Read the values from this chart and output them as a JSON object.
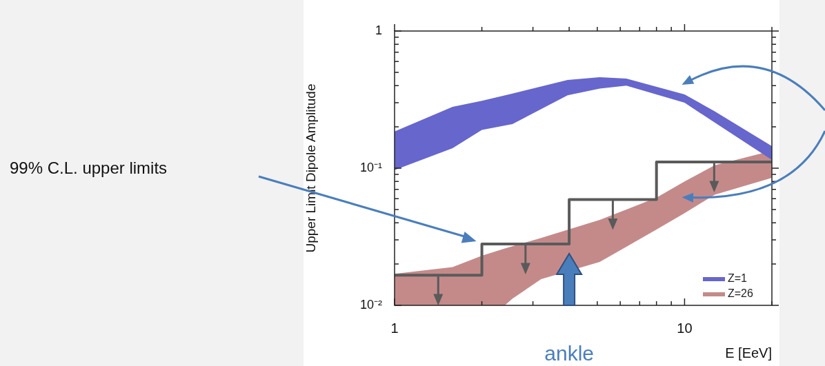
{
  "chart_data": {
    "type": "line",
    "xlabel": "E [EeV]",
    "ylabel": "Upper Limit Dipole Amplitude",
    "log": "xy",
    "legend": "bottom right",
    "xlim": [
      1,
      20
    ],
    "xticks": [
      1,
      {
        "value": 2,
        "label": null
      },
      {
        "value": 3,
        "label": null
      },
      {
        "value": 4,
        "label": null
      },
      {
        "value": 5,
        "label": null
      },
      {
        "value": 6,
        "label": null
      },
      {
        "value": 7,
        "label": null
      },
      {
        "value": 8,
        "label": null
      },
      {
        "value": 9,
        "label": null
      },
      10,
      {
        "value": 20,
        "label": null
      }
    ],
    "ylim": [
      0.01,
      1
    ],
    "yticks": [
      {
        "value": 0.01,
        "label": "10⁻²"
      },
      {
        "value": 0.02,
        "label": null
      },
      {
        "value": 0.03,
        "label": null
      },
      {
        "value": 0.04,
        "label": null
      },
      {
        "value": 0.05,
        "label": null
      },
      {
        "value": 0.06,
        "label": null
      },
      {
        "value": 0.07,
        "label": null
      },
      {
        "value": 0.08,
        "label": null
      },
      {
        "value": 0.09,
        "label": null
      },
      {
        "value": 0.1,
        "label": "10⁻¹"
      },
      {
        "value": 0.2,
        "label": null
      },
      {
        "value": 0.3,
        "label": null
      },
      {
        "value": 0.4,
        "label": null
      },
      {
        "value": 0.5,
        "label": null
      },
      {
        "value": 0.6,
        "label": null
      },
      {
        "value": 0.7,
        "label": null
      },
      {
        "value": 0.8,
        "label": null
      },
      {
        "value": 0.9,
        "label": null
      },
      1
    ],
    "series": [
      {
        "name": "Z=1",
        "type": "area",
        "color": "#6666cc",
        "x": [
          1,
          1.585,
          2,
          2.55,
          3.95,
          5.1,
          6.3,
          10,
          12.7,
          20
        ],
        "values": [
          null,
          null,
          null,
          null,
          null,
          null,
          null,
          null,
          null,
          null
        ],
        "lower": [
          0.097,
          0.14,
          0.19,
          0.21,
          0.34,
          0.38,
          0.4,
          0.3,
          0.215,
          0.115
        ],
        "upper": [
          0.185,
          0.28,
          0.31,
          0.35,
          0.44,
          0.46,
          0.45,
          0.345,
          0.26,
          0.145
        ]
      },
      {
        "name": "Z=26",
        "type": "area",
        "color": "#c48a8a",
        "x": [
          1,
          1.585,
          2,
          2.4,
          2.55,
          3.2,
          5.1,
          6.3,
          8,
          10,
          12.7,
          20
        ],
        "values": [
          null,
          null,
          null,
          null,
          null,
          null,
          null,
          null,
          null,
          null,
          null,
          null
        ],
        "lower": [
          0.01,
          0.01,
          0.01,
          0.01,
          0.0112,
          0.0155,
          0.0207,
          0.0267,
          0.0357,
          0.047,
          0.064,
          0.085
        ],
        "upper": [
          0.017,
          0.019,
          0.023,
          0.026,
          0.027,
          0.031,
          0.042,
          0.05,
          0.061,
          0.08,
          0.105,
          0.134
        ]
      },
      {
        "type": "step",
        "color": "#5a5a5a",
        "x": [
          1,
          2,
          4,
          8,
          20
        ],
        "values": [
          0.0166,
          0.028,
          0.059,
          0.111,
          0.111
        ]
      }
    ],
    "annotations": [
      "99% C.L. upper limits",
      "ankle"
    ]
  }
}
